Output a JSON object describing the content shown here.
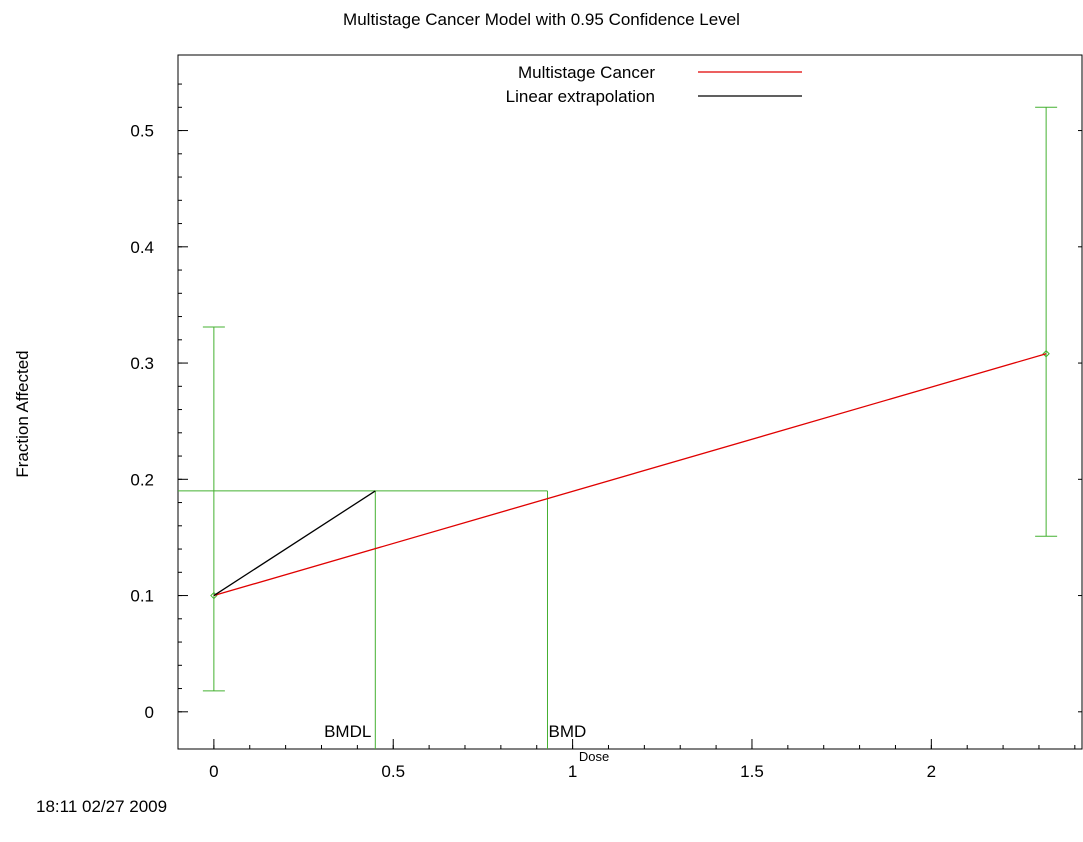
{
  "chart_data": {
    "type": "line",
    "title": "Multistage Cancer Model with 0.95 Confidence Level",
    "xlabel": "Dose",
    "ylabel": "Fraction Affected",
    "xlim": [
      -0.1,
      2.42
    ],
    "ylim": [
      -0.032,
      0.565
    ],
    "x_ticks": [
      0,
      0.5,
      1,
      1.5,
      2
    ],
    "x_tick_labels": [
      "0",
      "0.5",
      "1",
      "1.5",
      "2"
    ],
    "y_ticks": [
      0,
      0.1,
      0.2,
      0.3,
      0.4,
      0.5
    ],
    "y_tick_labels": [
      "0",
      "0.1",
      "0.2",
      "0.3",
      "0.4",
      "0.5"
    ],
    "legend_position": "top-center",
    "series": [
      {
        "name": "Multistage Cancer",
        "color": "#e00000",
        "x": [
          0,
          2.32
        ],
        "y": [
          0.1,
          0.308
        ]
      },
      {
        "name": "Linear extrapolation",
        "color": "#000000",
        "x": [
          0,
          0.45
        ],
        "y": [
          0.1,
          0.19
        ]
      }
    ],
    "observed": {
      "color": "#44b030",
      "x": [
        0,
        2.32
      ],
      "y": [
        0.1,
        0.308
      ],
      "lower": [
        0.018,
        0.151
      ],
      "upper": [
        0.331,
        0.52
      ]
    },
    "bmr_level": 0.19,
    "bmdl": 0.45,
    "bmd": 0.93,
    "bmdl_label": "BMDL",
    "bmd_label": "BMD"
  },
  "footer": {
    "timestamp": "18:11 02/27 2009"
  }
}
